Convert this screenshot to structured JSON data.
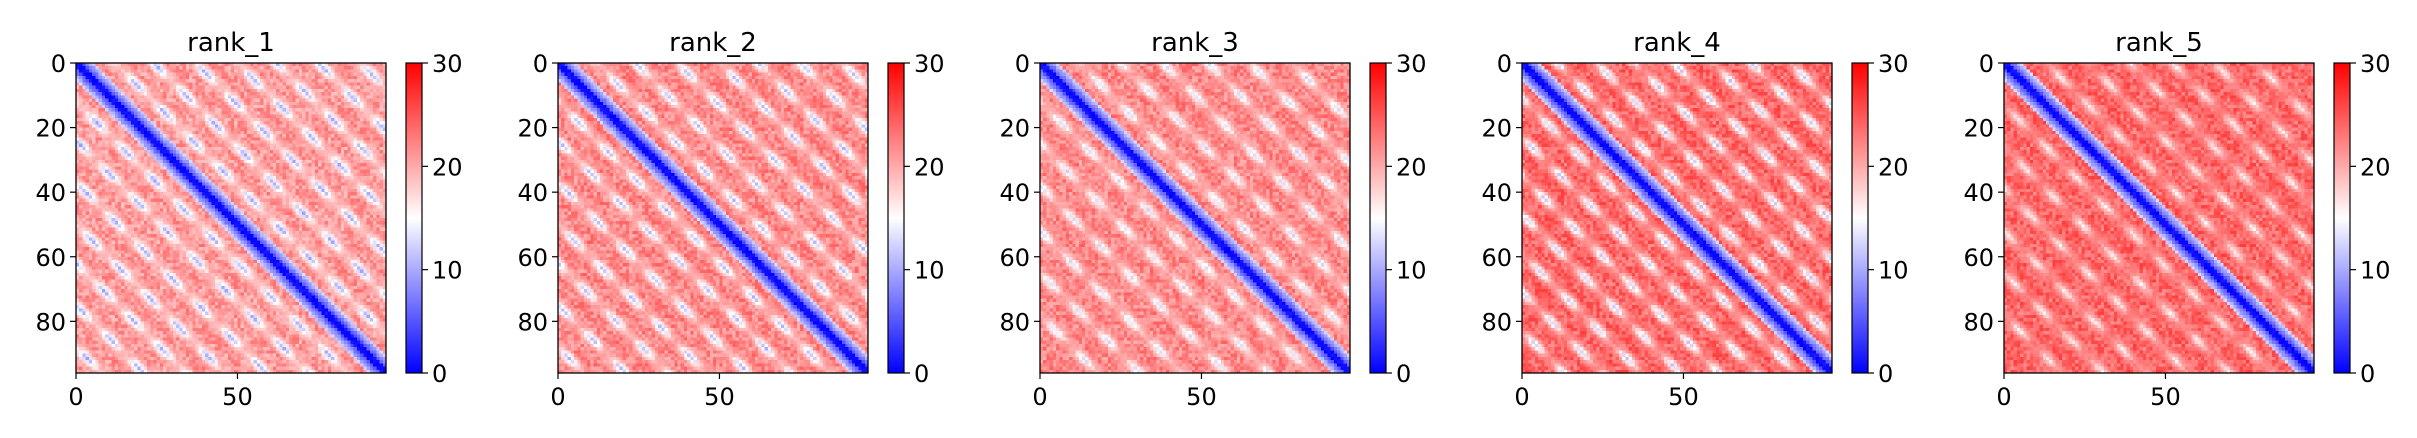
{
  "chart_data": [
    {
      "type": "heatmap",
      "title": "rank_1",
      "matrix_size": 96,
      "x_ticks": [
        0,
        50
      ],
      "y_ticks": [
        0,
        20,
        40,
        60,
        80
      ],
      "colorbar": {
        "cmap": "bwr",
        "vmin": 0,
        "vmax": 30,
        "ticks": [
          0,
          10,
          20,
          30
        ]
      },
      "diagonal_value": 0,
      "background_value": 21,
      "stripe_offsets": [
        12,
        24,
        37,
        50,
        62,
        75,
        88
      ],
      "stripe_min_value": 10
    },
    {
      "type": "heatmap",
      "title": "rank_2",
      "matrix_size": 96,
      "x_ticks": [
        0,
        50
      ],
      "y_ticks": [
        0,
        20,
        40,
        60,
        80
      ],
      "colorbar": {
        "cmap": "bwr",
        "vmin": 0,
        "vmax": 30,
        "ticks": [
          0,
          10,
          20,
          30
        ]
      },
      "diagonal_value": 0,
      "background_value": 22,
      "stripe_offsets": [
        12,
        24,
        37,
        50,
        62,
        75,
        88
      ],
      "stripe_min_value": 11
    },
    {
      "type": "heatmap",
      "title": "rank_3",
      "matrix_size": 96,
      "x_ticks": [
        0,
        50
      ],
      "y_ticks": [
        0,
        20,
        40,
        60,
        80
      ],
      "colorbar": {
        "cmap": "bwr",
        "vmin": 0,
        "vmax": 30,
        "ticks": [
          0,
          10,
          20,
          30
        ]
      },
      "diagonal_value": 0,
      "background_value": 22,
      "stripe_offsets": [
        12,
        25,
        38,
        52,
        65,
        78
      ],
      "stripe_min_value": 13
    },
    {
      "type": "heatmap",
      "title": "rank_4",
      "matrix_size": 96,
      "x_ticks": [
        0,
        50
      ],
      "y_ticks": [
        0,
        20,
        40,
        60,
        80
      ],
      "colorbar": {
        "cmap": "bwr",
        "vmin": 0,
        "vmax": 30,
        "ticks": [
          0,
          10,
          20,
          30
        ]
      },
      "diagonal_value": 0,
      "background_value": 24,
      "stripe_offsets": [
        11,
        23,
        35,
        47,
        59,
        71,
        83
      ],
      "stripe_min_value": 12
    },
    {
      "type": "heatmap",
      "title": "rank_5",
      "matrix_size": 96,
      "x_ticks": [
        0,
        50
      ],
      "y_ticks": [
        0,
        20,
        40,
        60,
        80
      ],
      "colorbar": {
        "cmap": "bwr",
        "vmin": 0,
        "vmax": 30,
        "ticks": [
          0,
          10,
          20,
          30
        ]
      },
      "diagonal_value": 0,
      "background_value": 24,
      "stripe_offsets": [
        13,
        26,
        39,
        52,
        65,
        78
      ],
      "stripe_min_value": 16
    }
  ]
}
